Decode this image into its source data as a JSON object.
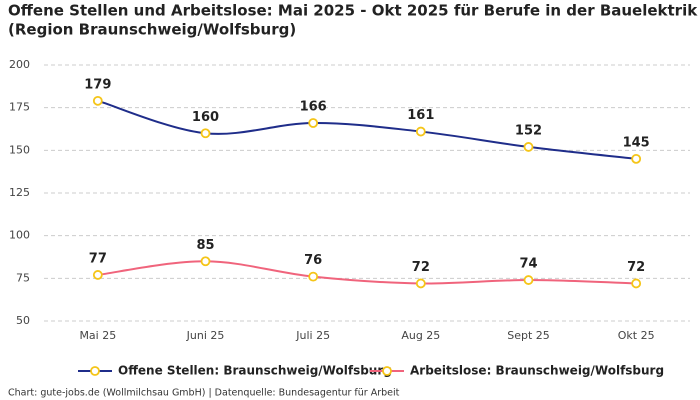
{
  "chart_data": {
    "type": "line",
    "title": "Offene Stellen und Arbeitslose: Mai 2025 - Okt 2025 für Berufe in der Bauelektrik",
    "subtitle": "(Region Braunschweig/Wolfsburg)",
    "source": "Chart: gute-jobs.de (Wollmilchsau GmbH) | Datenquelle: Bundesagentur für Arbeit",
    "categories": [
      "Mai 25",
      "Juni 25",
      "Juli 25",
      "Aug 25",
      "Sept 25",
      "Okt 25"
    ],
    "series": [
      {
        "name": "Offene Stellen: Braunschweig/Wolfsburg",
        "color": "#1f2d8a",
        "values": [
          179,
          160,
          166,
          161,
          152,
          145
        ]
      },
      {
        "name": "Arbeitslose: Braunschweig/Wolfsburg",
        "color": "#f0647c",
        "values": [
          77,
          85,
          76,
          72,
          74,
          72
        ]
      }
    ],
    "marker_stroke": "#f5c518",
    "ylim": [
      50,
      200
    ],
    "yticks": [
      50,
      75,
      100,
      125,
      150,
      175,
      200
    ],
    "grid": true
  }
}
